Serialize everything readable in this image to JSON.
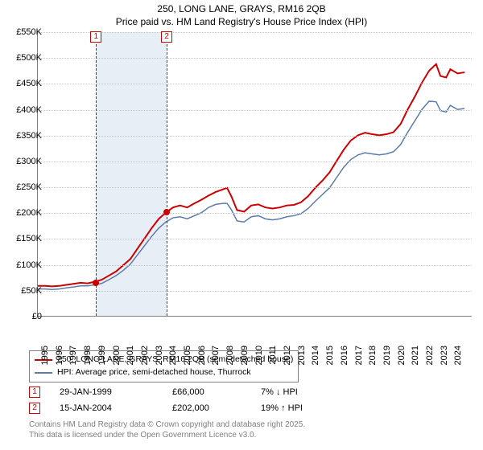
{
  "title": {
    "line1": "250, LONG LANE, GRAYS, RM16 2QB",
    "line2": "Price paid vs. HM Land Registry's House Price Index (HPI)",
    "fontsize": 12,
    "color": "#000000"
  },
  "chart": {
    "type": "line",
    "background_color": "#ffffff",
    "grid_color": "#c8c8c8",
    "axis_color": "#808080",
    "xlim": [
      1995,
      2025.5
    ],
    "ylim": [
      0,
      550
    ],
    "yticks": [
      0,
      50,
      100,
      150,
      200,
      250,
      300,
      350,
      400,
      450,
      500,
      550
    ],
    "ytick_labels": [
      "£0",
      "£50K",
      "£100K",
      "£150K",
      "£200K",
      "£250K",
      "£300K",
      "£350K",
      "£400K",
      "£450K",
      "£500K",
      "£550K"
    ],
    "xticks": [
      1995,
      1996,
      1997,
      1998,
      1999,
      2000,
      2001,
      2002,
      2003,
      2004,
      2005,
      2006,
      2007,
      2008,
      2009,
      2010,
      2011,
      2012,
      2013,
      2014,
      2015,
      2016,
      2017,
      2018,
      2019,
      2020,
      2021,
      2022,
      2023,
      2024
    ],
    "tick_fontsize": 11,
    "shaded_band": {
      "from": 1999.08,
      "to": 2004.04,
      "color": "#e8eef6"
    },
    "markers": [
      {
        "id": "1",
        "x": 1999.08,
        "y_box": 540,
        "color": "#cc0000"
      },
      {
        "id": "2",
        "x": 2004.04,
        "y_box": 540,
        "color": "#cc0000"
      }
    ],
    "sale_points": [
      {
        "x": 1999.08,
        "y": 66,
        "color": "#cc0000"
      },
      {
        "x": 2004.04,
        "y": 202,
        "color": "#cc0000"
      }
    ],
    "series": [
      {
        "name": "250, LONG LANE, GRAYS, RM16 2QB (semi-detached house)",
        "color": "#cc0000",
        "width": 2,
        "points": [
          [
            1995,
            58
          ],
          [
            1995.5,
            58
          ],
          [
            1996,
            57
          ],
          [
            1996.5,
            58
          ],
          [
            1997,
            60
          ],
          [
            1997.5,
            62
          ],
          [
            1998,
            64
          ],
          [
            1998.5,
            63
          ],
          [
            1999,
            66
          ],
          [
            1999.5,
            70
          ],
          [
            2000,
            78
          ],
          [
            2000.5,
            86
          ],
          [
            2001,
            98
          ],
          [
            2001.5,
            110
          ],
          [
            2002,
            130
          ],
          [
            2002.5,
            150
          ],
          [
            2003,
            170
          ],
          [
            2003.5,
            188
          ],
          [
            2004,
            200
          ],
          [
            2004.5,
            210
          ],
          [
            2005,
            214
          ],
          [
            2005.5,
            210
          ],
          [
            2006,
            218
          ],
          [
            2006.5,
            225
          ],
          [
            2007,
            233
          ],
          [
            2007.5,
            240
          ],
          [
            2008,
            245
          ],
          [
            2008.3,
            248
          ],
          [
            2008.6,
            232
          ],
          [
            2009,
            205
          ],
          [
            2009.5,
            202
          ],
          [
            2010,
            214
          ],
          [
            2010.5,
            216
          ],
          [
            2011,
            210
          ],
          [
            2011.5,
            208
          ],
          [
            2012,
            210
          ],
          [
            2012.5,
            214
          ],
          [
            2013,
            215
          ],
          [
            2013.5,
            220
          ],
          [
            2014,
            232
          ],
          [
            2014.5,
            248
          ],
          [
            2015,
            262
          ],
          [
            2015.5,
            278
          ],
          [
            2016,
            300
          ],
          [
            2016.5,
            322
          ],
          [
            2017,
            340
          ],
          [
            2017.5,
            350
          ],
          [
            2018,
            355
          ],
          [
            2018.5,
            352
          ],
          [
            2019,
            350
          ],
          [
            2019.5,
            352
          ],
          [
            2020,
            356
          ],
          [
            2020.5,
            372
          ],
          [
            2021,
            400
          ],
          [
            2021.5,
            425
          ],
          [
            2022,
            452
          ],
          [
            2022.5,
            475
          ],
          [
            2023,
            488
          ],
          [
            2023.3,
            465
          ],
          [
            2023.7,
            462
          ],
          [
            2024,
            478
          ],
          [
            2024.5,
            470
          ],
          [
            2025,
            472
          ]
        ]
      },
      {
        "name": "HPI: Average price, semi-detached house, Thurrock",
        "color": "#5b7ca8",
        "width": 1.5,
        "points": [
          [
            1995,
            52
          ],
          [
            1995.5,
            52
          ],
          [
            1996,
            51
          ],
          [
            1996.5,
            52
          ],
          [
            1997,
            54
          ],
          [
            1997.5,
            56
          ],
          [
            1998,
            58
          ],
          [
            1998.5,
            58
          ],
          [
            1999,
            60
          ],
          [
            1999.5,
            63
          ],
          [
            2000,
            70
          ],
          [
            2000.5,
            78
          ],
          [
            2001,
            88
          ],
          [
            2001.5,
            100
          ],
          [
            2002,
            118
          ],
          [
            2002.5,
            136
          ],
          [
            2003,
            154
          ],
          [
            2003.5,
            170
          ],
          [
            2004,
            182
          ],
          [
            2004.5,
            190
          ],
          [
            2005,
            192
          ],
          [
            2005.5,
            188
          ],
          [
            2006,
            194
          ],
          [
            2006.5,
            200
          ],
          [
            2007,
            210
          ],
          [
            2007.5,
            216
          ],
          [
            2008,
            218
          ],
          [
            2008.3,
            218
          ],
          [
            2008.6,
            206
          ],
          [
            2009,
            184
          ],
          [
            2009.5,
            182
          ],
          [
            2010,
            192
          ],
          [
            2010.5,
            194
          ],
          [
            2011,
            188
          ],
          [
            2011.5,
            186
          ],
          [
            2012,
            188
          ],
          [
            2012.5,
            192
          ],
          [
            2013,
            194
          ],
          [
            2013.5,
            198
          ],
          [
            2014,
            208
          ],
          [
            2014.5,
            222
          ],
          [
            2015,
            235
          ],
          [
            2015.5,
            248
          ],
          [
            2016,
            268
          ],
          [
            2016.5,
            288
          ],
          [
            2017,
            303
          ],
          [
            2017.5,
            312
          ],
          [
            2018,
            316
          ],
          [
            2018.5,
            314
          ],
          [
            2019,
            312
          ],
          [
            2019.5,
            314
          ],
          [
            2020,
            318
          ],
          [
            2020.5,
            332
          ],
          [
            2021,
            356
          ],
          [
            2021.5,
            378
          ],
          [
            2022,
            400
          ],
          [
            2022.5,
            416
          ],
          [
            2023,
            415
          ],
          [
            2023.3,
            398
          ],
          [
            2023.7,
            395
          ],
          [
            2024,
            408
          ],
          [
            2024.5,
            400
          ],
          [
            2025,
            402
          ]
        ]
      }
    ]
  },
  "legend": {
    "border_color": "#808080",
    "fontsize": 10.5,
    "items": [
      {
        "color": "#cc0000",
        "label": "250, LONG LANE, GRAYS, RM16 2QB (semi-detached house)"
      },
      {
        "color": "#5b7ca8",
        "label": "HPI: Average price, semi-detached house, Thurrock"
      }
    ]
  },
  "sales": [
    {
      "id": "1",
      "date": "29-JAN-1999",
      "price": "£66,000",
      "pct": "7% ↓ HPI",
      "marker_color": "#cc0000"
    },
    {
      "id": "2",
      "date": "15-JAN-2004",
      "price": "£202,000",
      "pct": "19% ↑ HPI",
      "marker_color": "#cc0000"
    }
  ],
  "footer": {
    "line1": "Contains HM Land Registry data © Crown copyright and database right 2025.",
    "line2": "This data is licensed under the Open Government Licence v3.0.",
    "color": "#808080",
    "fontsize": 10
  }
}
